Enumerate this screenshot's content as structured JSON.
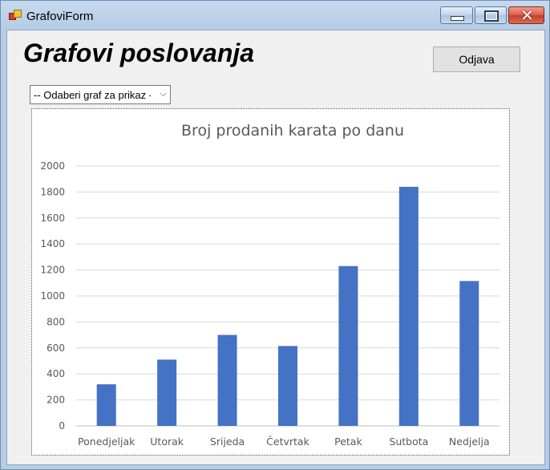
{
  "window": {
    "title": "GrafoviForm"
  },
  "header": {
    "title": "Grafovi poslovanja",
    "logout_label": "Odjava"
  },
  "chart_select": {
    "value": "-- Odaberi graf za prikaz --"
  },
  "chart_data": {
    "type": "bar",
    "title": "Broj prodanih karata po danu",
    "categories": [
      "Ponedjeljak",
      "Utorak",
      "Srijeda",
      "Četvrtak",
      "Petak",
      "Sutbota",
      "Nedjelja"
    ],
    "values": [
      320,
      510,
      700,
      615,
      1230,
      1840,
      1115
    ],
    "ylim": [
      0,
      2000
    ],
    "yticks": [
      0,
      200,
      400,
      600,
      800,
      1000,
      1200,
      1400,
      1600,
      1800,
      2000
    ],
    "grid": true,
    "bar_color": "#4472c4"
  }
}
